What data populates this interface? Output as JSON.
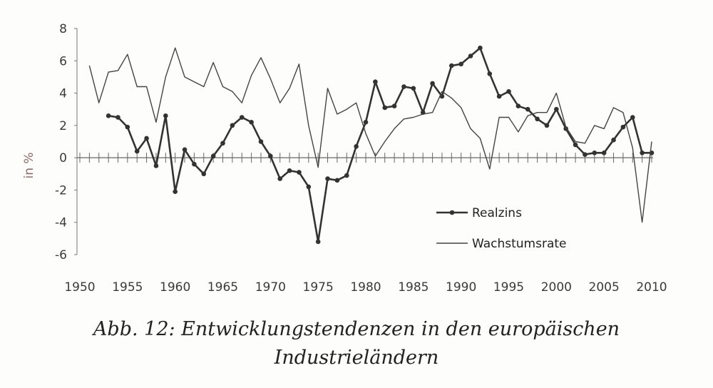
{
  "chart_data": {
    "type": "line",
    "ylabel": "in %",
    "xlabel": "",
    "xlim": [
      1950,
      2010
    ],
    "ylim": [
      -6,
      8
    ],
    "x_ticks": [
      1950,
      1955,
      1960,
      1965,
      1970,
      1975,
      1980,
      1985,
      1990,
      1995,
      2000,
      2005,
      2010
    ],
    "y_ticks": [
      8,
      6,
      4,
      2,
      0,
      -2,
      -4,
      -6
    ],
    "legend_position": "bottom-right",
    "series": [
      {
        "name": "Realzins",
        "marker": "dot",
        "color": "#333333",
        "x": [
          1953,
          1954,
          1955,
          1956,
          1957,
          1958,
          1959,
          1960,
          1961,
          1962,
          1963,
          1964,
          1965,
          1966,
          1967,
          1968,
          1969,
          1970,
          1971,
          1972,
          1973,
          1974,
          1975,
          1976,
          1977,
          1978,
          1979,
          1980,
          1981,
          1982,
          1983,
          1984,
          1985,
          1986,
          1987,
          1988,
          1989,
          1990,
          1991,
          1992,
          1993,
          1994,
          1995,
          1996,
          1997,
          1998,
          1999,
          2000,
          2001,
          2002,
          2003,
          2004,
          2005,
          2006,
          2007,
          2008,
          2009,
          2010
        ],
        "values": [
          2.6,
          2.5,
          1.9,
          0.4,
          1.2,
          -0.5,
          2.6,
          -2.1,
          0.5,
          -0.4,
          -1.0,
          0.1,
          0.9,
          2.0,
          2.5,
          2.2,
          1.0,
          0.1,
          -1.3,
          -0.8,
          -0.9,
          -1.8,
          -5.2,
          -1.3,
          -1.4,
          -1.1,
          0.7,
          2.2,
          4.7,
          3.1,
          3.2,
          4.4,
          4.3,
          2.8,
          4.6,
          3.8,
          5.7,
          5.8,
          6.3,
          6.8,
          5.2,
          3.8,
          4.1,
          3.2,
          3.0,
          2.4,
          2.0,
          3.0,
          1.8,
          0.8,
          0.2,
          0.3,
          0.3,
          1.1,
          1.9,
          2.5,
          0.3,
          0.3
        ]
      },
      {
        "name": "Wachstumsrate",
        "marker": "none",
        "color": "#444444",
        "x": [
          1951,
          1952,
          1953,
          1954,
          1955,
          1956,
          1957,
          1958,
          1959,
          1960,
          1961,
          1962,
          1963,
          1964,
          1965,
          1966,
          1967,
          1968,
          1969,
          1970,
          1971,
          1972,
          1973,
          1974,
          1975,
          1976,
          1977,
          1978,
          1979,
          1980,
          1981,
          1982,
          1983,
          1984,
          1985,
          1986,
          1987,
          1988,
          1989,
          1990,
          1991,
          1992,
          1993,
          1994,
          1995,
          1996,
          1997,
          1998,
          1999,
          2000,
          2001,
          2002,
          2003,
          2004,
          2005,
          2006,
          2007,
          2008,
          2009,
          2010
        ],
        "values": [
          5.7,
          3.4,
          5.3,
          5.4,
          6.4,
          4.4,
          4.4,
          2.2,
          5.0,
          6.8,
          5.0,
          4.7,
          4.4,
          5.9,
          4.4,
          4.1,
          3.4,
          5.1,
          6.2,
          4.9,
          3.4,
          4.3,
          5.8,
          2.0,
          -0.6,
          4.3,
          2.7,
          3.0,
          3.4,
          1.5,
          0.1,
          1.0,
          1.8,
          2.4,
          2.5,
          2.7,
          2.8,
          4.1,
          3.7,
          3.1,
          1.8,
          1.2,
          -0.7,
          2.5,
          2.5,
          1.6,
          2.6,
          2.8,
          2.8,
          4.0,
          1.9,
          1.0,
          0.9,
          2.0,
          1.8,
          3.1,
          2.8,
          0.6,
          -4.0,
          1.0
        ]
      }
    ]
  },
  "caption": {
    "line1": "Abb. 12: Entwicklungstendenzen in den europäischen",
    "line2": "Industrieländern"
  }
}
